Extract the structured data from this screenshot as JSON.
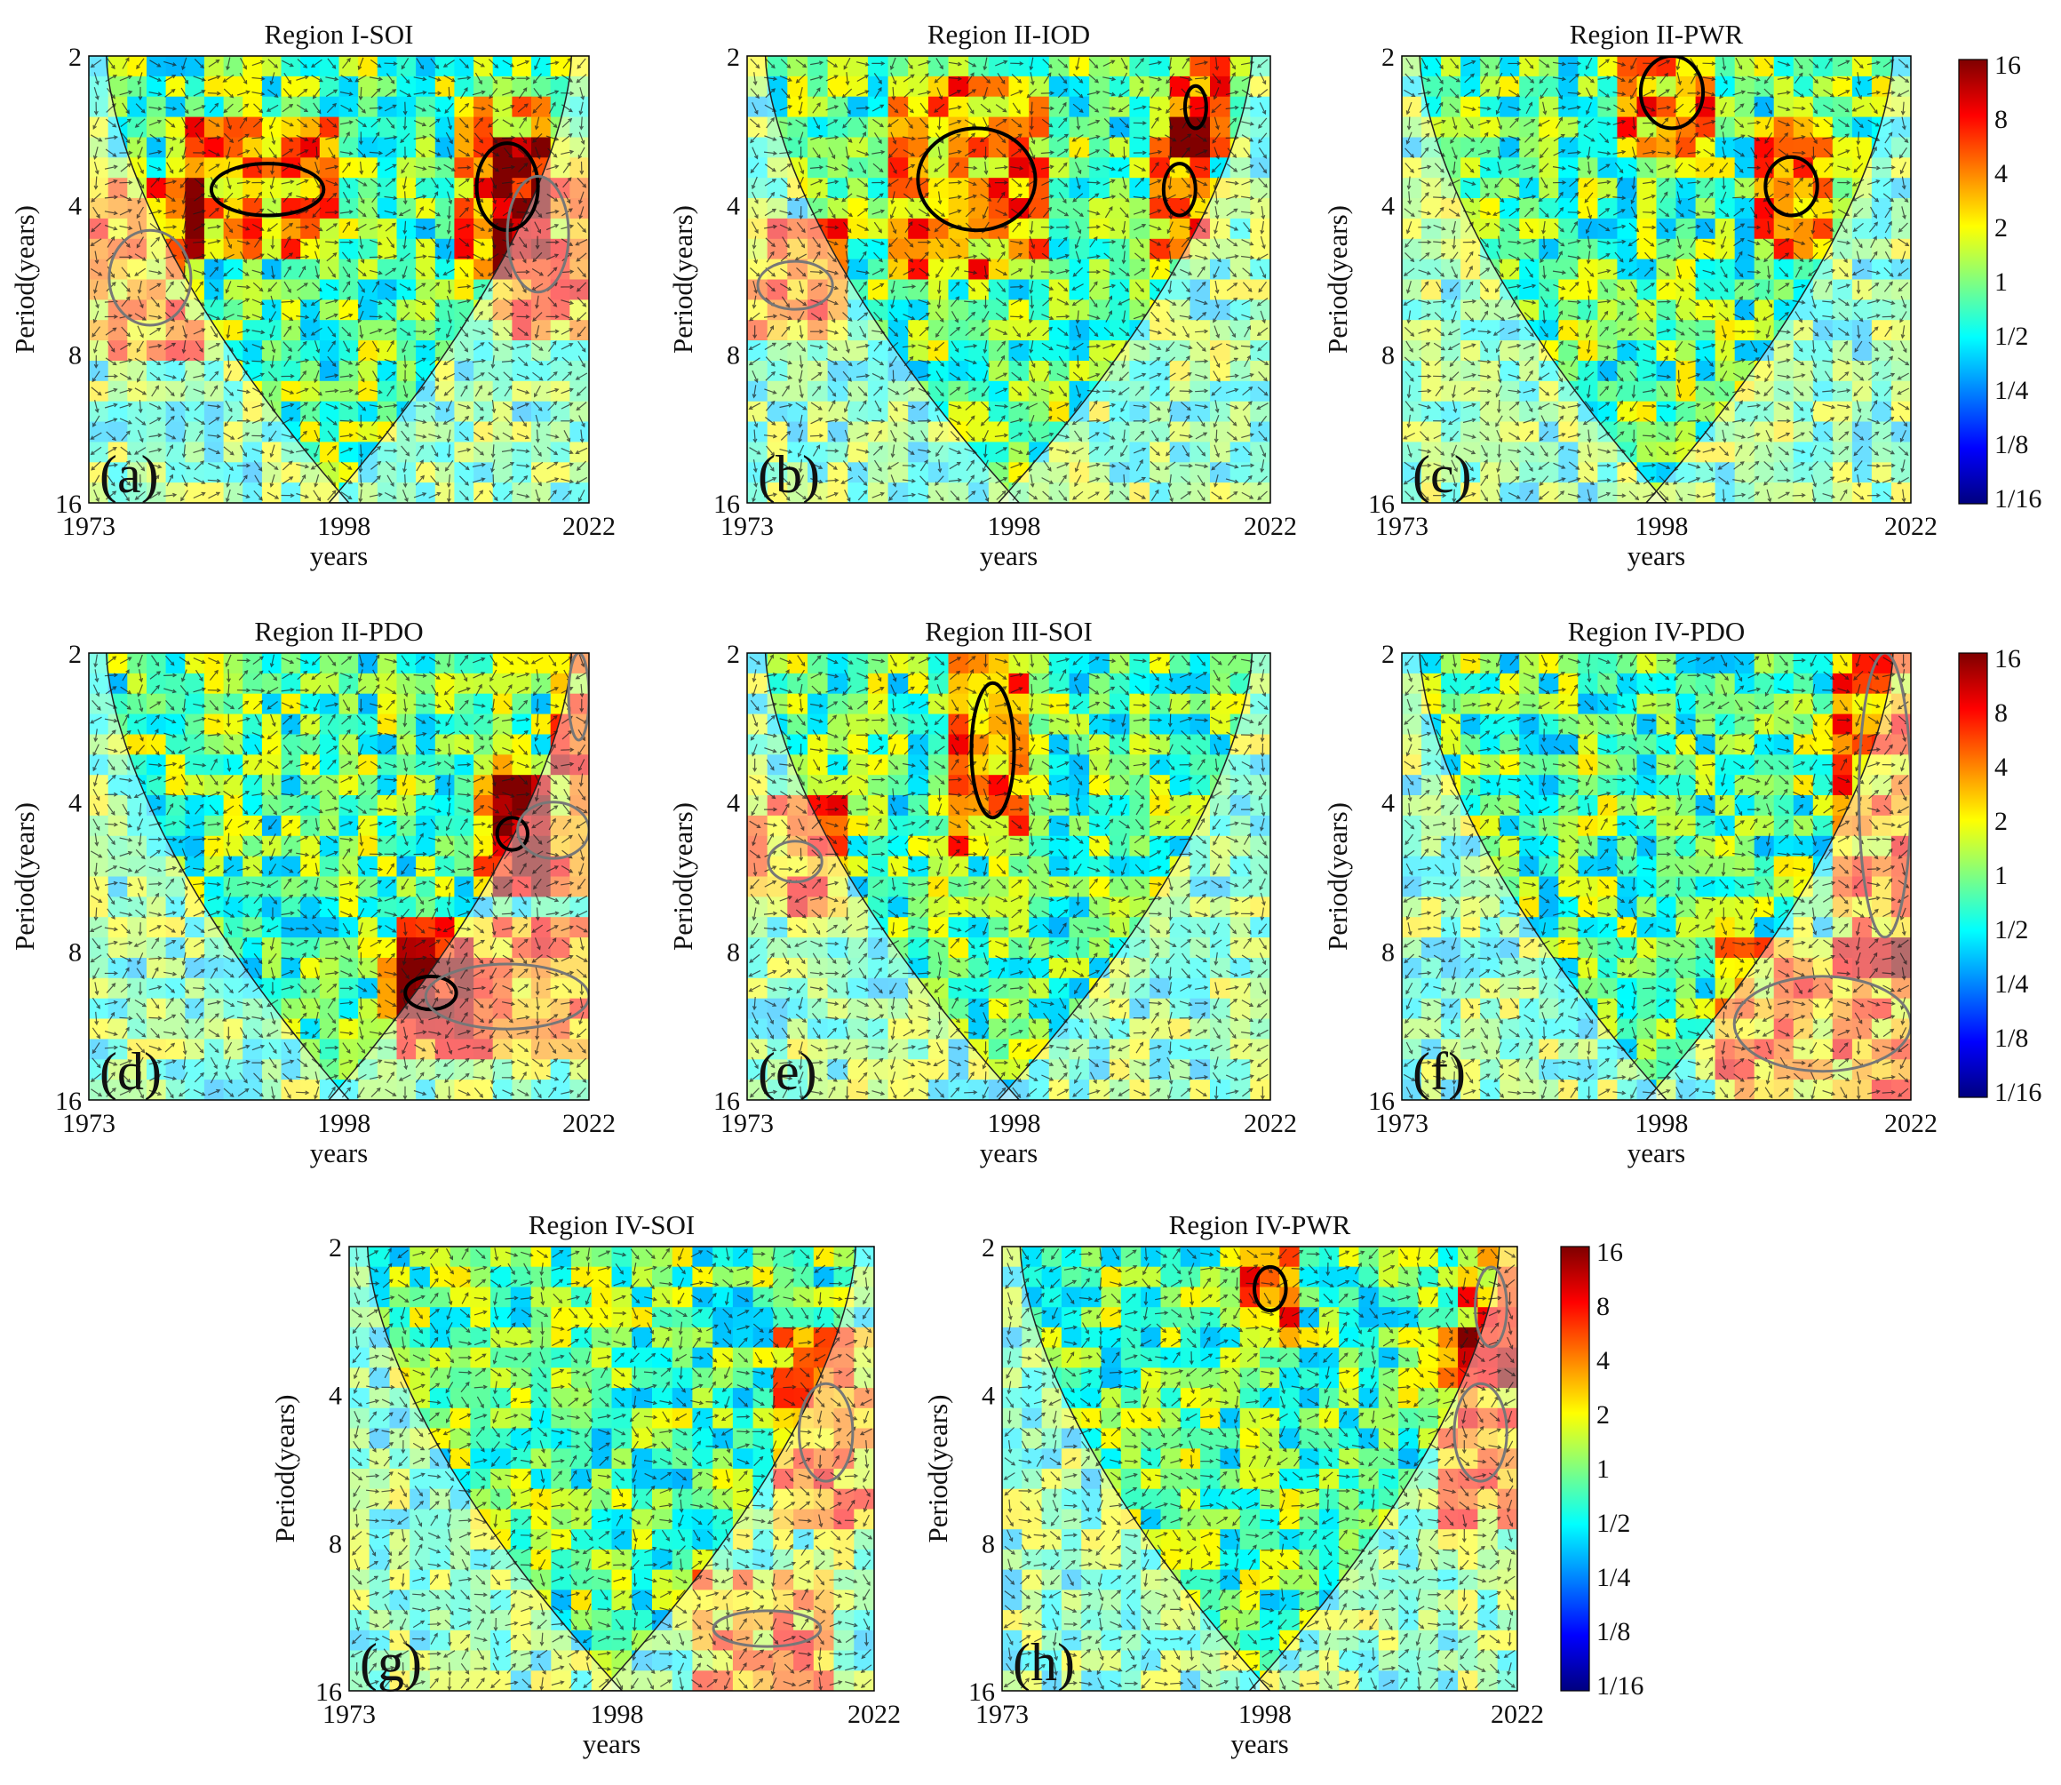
{
  "figure": {
    "type": "wavelet-coherence",
    "yaxis_label": "Period(years)",
    "xaxis_label": "years"
  },
  "colorbar": {
    "ticks": [
      "16",
      "8",
      "4",
      "2",
      "1",
      "1/2",
      "1/4",
      "1/8",
      "1/16"
    ],
    "values": [
      16,
      8,
      4,
      2,
      1,
      0.5,
      0.25,
      0.125,
      0.0625
    ],
    "colormap": [
      "#00007f",
      "#0000ff",
      "#0080ff",
      "#00ffff",
      "#80ff80",
      "#ffff00",
      "#ff8000",
      "#ff0000",
      "#7f0000"
    ]
  },
  "chart_data": [
    {
      "type": "heatmap",
      "id": "a",
      "panel_label": "(a)",
      "title": "Region I-SOI",
      "xlim": [
        1973,
        2022
      ],
      "xticks": [
        "1973",
        "1998",
        "2022"
      ],
      "ylim": [
        2,
        16
      ],
      "yticks": [
        "2",
        "4",
        "8",
        "16"
      ],
      "ylabel": "Period(years)",
      "xlabel": "years",
      "significant_regions": [
        {
          "year_range": [
            1985,
            1996
          ],
          "period_range": [
            3.3,
            4.2
          ],
          "inside_coi": true
        },
        {
          "year_range": [
            2011,
            2017
          ],
          "period_range": [
            3.0,
            4.5
          ],
          "inside_coi": true
        },
        {
          "year_range": [
            1975,
            1983
          ],
          "period_range": [
            4.5,
            7.0
          ],
          "inside_coi": false
        },
        {
          "year_range": [
            2014,
            2020
          ],
          "period_range": [
            3.5,
            6.0
          ],
          "inside_coi": false
        }
      ]
    },
    {
      "type": "heatmap",
      "id": "b",
      "panel_label": "(b)",
      "title": "Region II-IOD",
      "xlim": [
        1973,
        2022
      ],
      "xticks": [
        "1973",
        "1998",
        "2022"
      ],
      "ylim": [
        2,
        16
      ],
      "yticks": [
        "2",
        "4",
        "8",
        "16"
      ],
      "ylabel": "Period(years)",
      "xlabel": "years",
      "significant_regions": [
        {
          "year_range": [
            1989,
            2000
          ],
          "period_range": [
            2.8,
            4.5
          ],
          "inside_coi": true
        },
        {
          "year_range": [
            2012,
            2015
          ],
          "period_range": [
            3.3,
            4.2
          ],
          "inside_coi": true
        },
        {
          "year_range": [
            2014,
            2016
          ],
          "period_range": [
            2.3,
            2.8
          ],
          "inside_coi": true
        },
        {
          "year_range": [
            1974,
            1981
          ],
          "period_range": [
            5.2,
            6.5
          ],
          "inside_coi": false
        }
      ]
    },
    {
      "type": "heatmap",
      "id": "c",
      "panel_label": "(c)",
      "title": "Region II-PWR",
      "xlim": [
        1973,
        2022
      ],
      "xticks": [
        "1973",
        "1998",
        "2022"
      ],
      "ylim": [
        2,
        16
      ],
      "yticks": [
        "2",
        "4",
        "8",
        "16"
      ],
      "ylabel": "Period(years)",
      "xlabel": "years",
      "significant_regions": [
        {
          "year_range": [
            1996,
            2002
          ],
          "period_range": [
            2.0,
            2.8
          ],
          "inside_coi": true
        },
        {
          "year_range": [
            2008,
            2013
          ],
          "period_range": [
            3.2,
            4.2
          ],
          "inside_coi": true
        }
      ]
    },
    {
      "type": "heatmap",
      "id": "d",
      "panel_label": "(d)",
      "title": "Region II-PDO",
      "xlim": [
        1973,
        2022
      ],
      "xticks": [
        "1973",
        "1998",
        "2022"
      ],
      "ylim": [
        2,
        16
      ],
      "yticks": [
        "2",
        "4",
        "8",
        "16"
      ],
      "ylabel": "Period(years)",
      "xlabel": "years",
      "significant_regions": [
        {
          "year_range": [
            2013,
            2016
          ],
          "period_range": [
            4.3,
            5.0
          ],
          "inside_coi": true
        },
        {
          "year_range": [
            2004,
            2009
          ],
          "period_range": [
            9.0,
            10.5
          ],
          "inside_coi": true
        },
        {
          "year_range": [
            2015,
            2022
          ],
          "period_range": [
            4.0,
            5.2
          ],
          "inside_coi": false
        },
        {
          "year_range": [
            2006,
            2022
          ],
          "period_range": [
            8.5,
            11.5
          ],
          "inside_coi": false
        },
        {
          "year_range": [
            2020,
            2022
          ],
          "period_range": [
            2.0,
            3.0
          ],
          "inside_coi": false
        }
      ]
    },
    {
      "type": "heatmap",
      "id": "e",
      "panel_label": "(e)",
      "title": "Region III-SOI",
      "xlim": [
        1973,
        2022
      ],
      "xticks": [
        "1973",
        "1998",
        "2022"
      ],
      "ylim": [
        2,
        16
      ],
      "yticks": [
        "2",
        "4",
        "8",
        "16"
      ],
      "ylabel": "Period(years)",
      "xlabel": "years",
      "significant_regions": [
        {
          "year_range": [
            1994,
            1998
          ],
          "period_range": [
            2.3,
            4.3
          ],
          "inside_coi": true
        },
        {
          "year_range": [
            1975,
            1980
          ],
          "period_range": [
            4.8,
            5.8
          ],
          "inside_coi": false
        }
      ]
    },
    {
      "type": "heatmap",
      "id": "f",
      "panel_label": "(f)",
      "title": "Region IV-PDO",
      "xlim": [
        1973,
        2022
      ],
      "xticks": [
        "1973",
        "1998",
        "2022"
      ],
      "ylim": [
        2,
        16
      ],
      "yticks": [
        "2",
        "4",
        "8",
        "16"
      ],
      "ylabel": "Period(years)",
      "xlabel": "years",
      "significant_regions": [
        {
          "year_range": [
            2017,
            2022
          ],
          "period_range": [
            2.0,
            7.5
          ],
          "inside_coi": false
        },
        {
          "year_range": [
            2005,
            2022
          ],
          "period_range": [
            9.0,
            14.0
          ],
          "inside_coi": false
        }
      ]
    },
    {
      "type": "heatmap",
      "id": "g",
      "panel_label": "(g)",
      "title": "Region IV-SOI",
      "xlim": [
        1973,
        2022
      ],
      "xticks": [
        "1973",
        "1998",
        "2022"
      ],
      "ylim": [
        2,
        16
      ],
      "yticks": [
        "2",
        "4",
        "8",
        "16"
      ],
      "ylabel": "Period(years)",
      "xlabel": "years",
      "significant_regions": [
        {
          "year_range": [
            2015,
            2020
          ],
          "period_range": [
            3.8,
            6.0
          ],
          "inside_coi": false
        },
        {
          "year_range": [
            2007,
            2017
          ],
          "period_range": [
            11.0,
            13.0
          ],
          "inside_coi": false
        }
      ]
    },
    {
      "type": "heatmap",
      "id": "h",
      "panel_label": "(h)",
      "title": "Region IV-PWR",
      "xlim": [
        1973,
        2022
      ],
      "xticks": [
        "1973",
        "1998",
        "2022"
      ],
      "ylim": [
        2,
        16
      ],
      "yticks": [
        "2",
        "4",
        "8",
        "16"
      ],
      "ylabel": "Period(years)",
      "xlabel": "years",
      "significant_regions": [
        {
          "year_range": [
            1997,
            2000
          ],
          "period_range": [
            2.2,
            2.7
          ],
          "inside_coi": true
        },
        {
          "year_range": [
            2018,
            2021
          ],
          "period_range": [
            2.2,
            3.2
          ],
          "inside_coi": false
        },
        {
          "year_range": [
            2016,
            2021
          ],
          "period_range": [
            3.8,
            6.0
          ],
          "inside_coi": false
        }
      ]
    }
  ]
}
